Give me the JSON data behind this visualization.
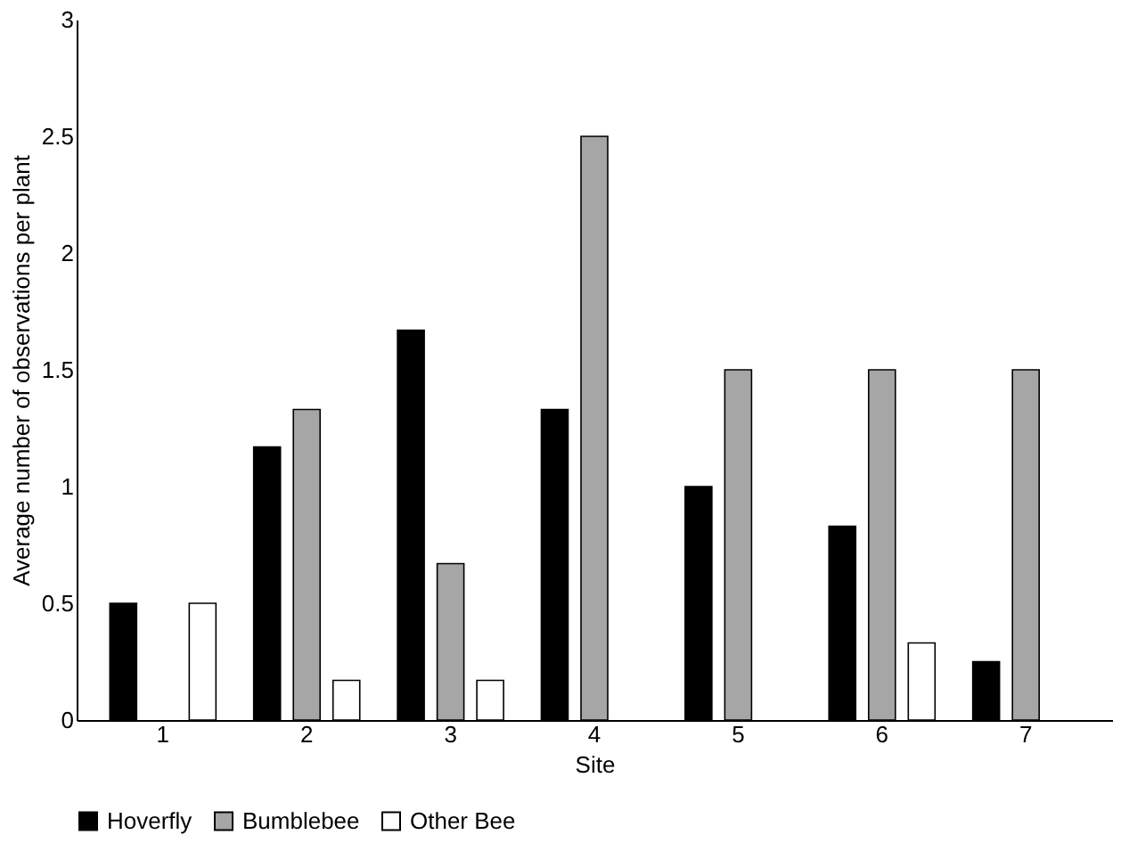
{
  "chart_data": {
    "type": "bar",
    "xlabel": "Site",
    "ylabel": "Average number of observations per plant",
    "categories": [
      "1",
      "2",
      "3",
      "4",
      "5",
      "6",
      "7"
    ],
    "series": [
      {
        "name": "Hoverfly",
        "color": "#000000",
        "values": [
          0.5,
          1.17,
          1.67,
          1.33,
          1.0,
          0.83,
          0.25
        ]
      },
      {
        "name": "Bumblebee",
        "color": "#a6a6a6",
        "values": [
          0,
          1.33,
          0.67,
          2.5,
          1.5,
          1.5,
          1.5
        ]
      },
      {
        "name": "Other Bee",
        "color": "#ffffff",
        "values": [
          0.5,
          0.17,
          0.17,
          0,
          0,
          0.33,
          0
        ]
      }
    ],
    "ylim": [
      0,
      3
    ],
    "yticks": [
      0,
      0.5,
      1,
      1.5,
      2,
      2.5,
      3
    ],
    "grid": false,
    "legend": "bottom"
  }
}
